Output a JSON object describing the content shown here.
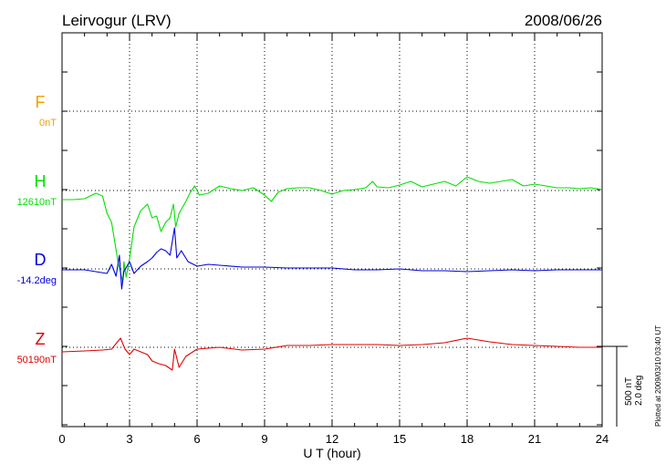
{
  "chart_data": {
    "type": "line",
    "title": "Leirvogur (LRV)",
    "date": "2008/06/26",
    "xlabel": "U T (hour)",
    "xlim": [
      0,
      24
    ],
    "xticks": [
      "0",
      "3",
      "6",
      "9",
      "12",
      "15",
      "18",
      "21",
      "24"
    ],
    "scale_labels": [
      "500 nT",
      "2.0 deg"
    ],
    "plot_note": "Plotted at 2009/03/10 03:40 UT",
    "series": [
      {
        "name": "F",
        "baseline_label": "0nT",
        "color": "#f0a000",
        "points": []
      },
      {
        "name": "H",
        "baseline_label": "12610nT",
        "color": "#00e000",
        "points": [
          [
            0,
            -10
          ],
          [
            0.5,
            -10
          ],
          [
            1,
            -9
          ],
          [
            1.5,
            -3
          ],
          [
            1.8,
            -6
          ],
          [
            2.0,
            -25
          ],
          [
            2.2,
            -35
          ],
          [
            2.4,
            -65
          ],
          [
            2.5,
            -80
          ],
          [
            2.6,
            -90
          ],
          [
            2.7,
            -100
          ],
          [
            2.75,
            -78
          ],
          [
            2.85,
            -95
          ],
          [
            3.0,
            -75
          ],
          [
            3.2,
            -40
          ],
          [
            3.5,
            -22
          ],
          [
            3.8,
            -15
          ],
          [
            4.0,
            -30
          ],
          [
            4.2,
            -28
          ],
          [
            4.4,
            -45
          ],
          [
            4.6,
            -35
          ],
          [
            4.8,
            -30
          ],
          [
            4.95,
            -15
          ],
          [
            5.05,
            -40
          ],
          [
            5.2,
            -25
          ],
          [
            5.5,
            -12
          ],
          [
            5.7,
            -2
          ],
          [
            5.9,
            5
          ],
          [
            6.1,
            -5
          ],
          [
            6.5,
            -3
          ],
          [
            7,
            5
          ],
          [
            7.5,
            2
          ],
          [
            8,
            0
          ],
          [
            8.5,
            3
          ],
          [
            9,
            -5
          ],
          [
            9.3,
            -12
          ],
          [
            9.6,
            -2
          ],
          [
            10,
            2
          ],
          [
            10.5,
            3
          ],
          [
            11,
            3
          ],
          [
            11.5,
            0
          ],
          [
            12,
            -4
          ],
          [
            12.5,
            0
          ],
          [
            13,
            1
          ],
          [
            13.5,
            3
          ],
          [
            13.8,
            10
          ],
          [
            14,
            4
          ],
          [
            14.5,
            3
          ],
          [
            15,
            6
          ],
          [
            15.5,
            10
          ],
          [
            16,
            4
          ],
          [
            16.5,
            7
          ],
          [
            17,
            10
          ],
          [
            17.5,
            5
          ],
          [
            18,
            15
          ],
          [
            18.5,
            10
          ],
          [
            19,
            8
          ],
          [
            19.5,
            10
          ],
          [
            20,
            12
          ],
          [
            20.5,
            5
          ],
          [
            21,
            7
          ],
          [
            21.5,
            5
          ],
          [
            22,
            3
          ],
          [
            22.5,
            3
          ],
          [
            23,
            2
          ],
          [
            23.5,
            3
          ],
          [
            24,
            1
          ]
        ]
      },
      {
        "name": "D",
        "baseline_label": "-14.2deg",
        "color": "#0000e0",
        "points": [
          [
            0,
            -1
          ],
          [
            0.5,
            -1
          ],
          [
            1,
            -1
          ],
          [
            1.5,
            -3
          ],
          [
            2.0,
            -5
          ],
          [
            2.2,
            5
          ],
          [
            2.4,
            -8
          ],
          [
            2.55,
            15
          ],
          [
            2.65,
            -22
          ],
          [
            2.75,
            -3
          ],
          [
            3.0,
            8
          ],
          [
            3.2,
            -5
          ],
          [
            3.5,
            3
          ],
          [
            3.8,
            8
          ],
          [
            4.0,
            12
          ],
          [
            4.2,
            18
          ],
          [
            4.4,
            22
          ],
          [
            4.6,
            20
          ],
          [
            4.8,
            15
          ],
          [
            5.0,
            45
          ],
          [
            5.1,
            12
          ],
          [
            5.3,
            20
          ],
          [
            5.6,
            8
          ],
          [
            6,
            3
          ],
          [
            6.5,
            5
          ],
          [
            7,
            4
          ],
          [
            8,
            2
          ],
          [
            9,
            2
          ],
          [
            10,
            1
          ],
          [
            11,
            1
          ],
          [
            12,
            1
          ],
          [
            13,
            -1
          ],
          [
            14,
            -1
          ],
          [
            15,
            0
          ],
          [
            16,
            -2
          ],
          [
            17,
            -2
          ],
          [
            18,
            -3
          ],
          [
            19,
            -2
          ],
          [
            20,
            -1
          ],
          [
            21,
            -2
          ],
          [
            22,
            -1
          ],
          [
            23,
            -1
          ],
          [
            24,
            -1
          ]
        ]
      },
      {
        "name": "Z",
        "baseline_label": "50190nT",
        "color": "#e00000",
        "points": [
          [
            0,
            -5
          ],
          [
            1,
            -4
          ],
          [
            1.8,
            -3
          ],
          [
            2.2,
            -2
          ],
          [
            2.6,
            10
          ],
          [
            2.8,
            -2
          ],
          [
            3.0,
            -8
          ],
          [
            3.2,
            -2
          ],
          [
            3.5,
            -5
          ],
          [
            3.8,
            -8
          ],
          [
            4.0,
            -15
          ],
          [
            4.3,
            -18
          ],
          [
            4.6,
            -20
          ],
          [
            4.9,
            -25
          ],
          [
            5.0,
            -2
          ],
          [
            5.2,
            -22
          ],
          [
            5.5,
            -10
          ],
          [
            6,
            -2
          ],
          [
            7,
            0
          ],
          [
            8,
            -3
          ],
          [
            9,
            -2
          ],
          [
            10,
            2
          ],
          [
            11,
            2
          ],
          [
            12,
            3
          ],
          [
            13,
            3
          ],
          [
            14,
            3
          ],
          [
            15,
            2
          ],
          [
            16,
            3
          ],
          [
            17,
            5
          ],
          [
            18,
            10
          ],
          [
            18.5,
            8
          ],
          [
            19,
            6
          ],
          [
            20,
            3
          ],
          [
            21,
            2
          ],
          [
            22,
            1
          ],
          [
            23,
            0
          ],
          [
            24,
            0
          ]
        ]
      }
    ]
  }
}
